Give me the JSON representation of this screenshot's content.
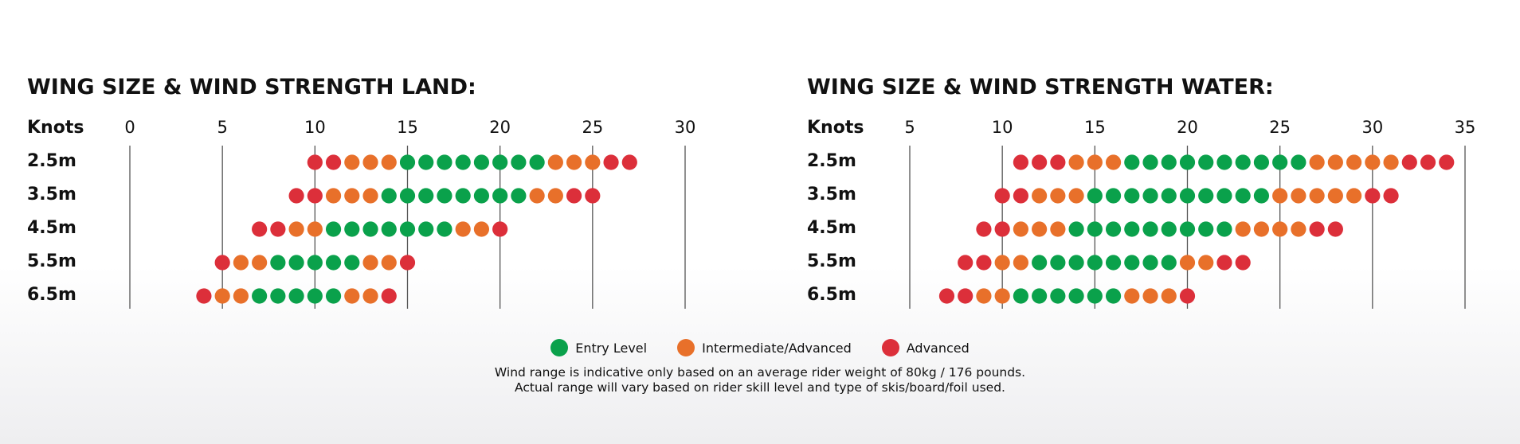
{
  "colors": {
    "entry": "#0aa14b",
    "intermediate": "#e8702a",
    "advanced": "#dc2f3a"
  },
  "legend": [
    {
      "label": "Entry Level",
      "color": "#0aa14b"
    },
    {
      "label": "Intermediate/Advanced",
      "color": "#e8702a"
    },
    {
      "label": "Advanced",
      "color": "#dc2f3a"
    }
  ],
  "notes": {
    "line1": "Wind range is indicative only based on an average rider weight of 80kg / 176 pounds.",
    "line2": "Actual range will vary based on rider skill level and type of skis/board/foil used."
  },
  "chart_data": [
    {
      "type": "scatter",
      "title": "WING SIZE & WIND STRENGTH LAND:",
      "xlabel": "Knots",
      "xlim": [
        0,
        30
      ],
      "xticks": [
        0,
        5,
        10,
        15,
        20,
        25,
        30
      ],
      "rows": [
        {
          "label": "2.5m",
          "start": 10,
          "levels": "RROOOGGGGGGGGOOORR"
        },
        {
          "label": "3.5m",
          "start": 9,
          "levels": "RROOOGGGGGGGGOORR"
        },
        {
          "label": "4.5m",
          "start": 7,
          "levels": "RROOGGGGGGGOOR"
        },
        {
          "label": "5.5m",
          "start": 5,
          "levels": "ROOGGGGGOOR"
        },
        {
          "label": "6.5m",
          "start": 4,
          "levels": "ROOGGGGGOOR"
        }
      ]
    },
    {
      "type": "scatter",
      "title": "WING SIZE & WIND STRENGTH WATER:",
      "xlabel": "Knots",
      "xlim": [
        5,
        35
      ],
      "xticks": [
        5,
        10,
        15,
        20,
        25,
        30,
        35
      ],
      "rows": [
        {
          "label": "2.5m",
          "start": 11,
          "levels": "RRROOOGGGGGGGGGGOOOOORRR"
        },
        {
          "label": "3.5m",
          "start": 10,
          "levels": "RROOOGGGGGGGGGGOOOOORR"
        },
        {
          "label": "4.5m",
          "start": 9,
          "levels": "RROOOGGGGGGGGGOOOORR"
        },
        {
          "label": "5.5m",
          "start": 8,
          "levels": "RROOGGGGGGGGOORR"
        },
        {
          "label": "6.5m",
          "start": 7,
          "levels": "RROOGGGGGGOOOR"
        }
      ]
    }
  ]
}
